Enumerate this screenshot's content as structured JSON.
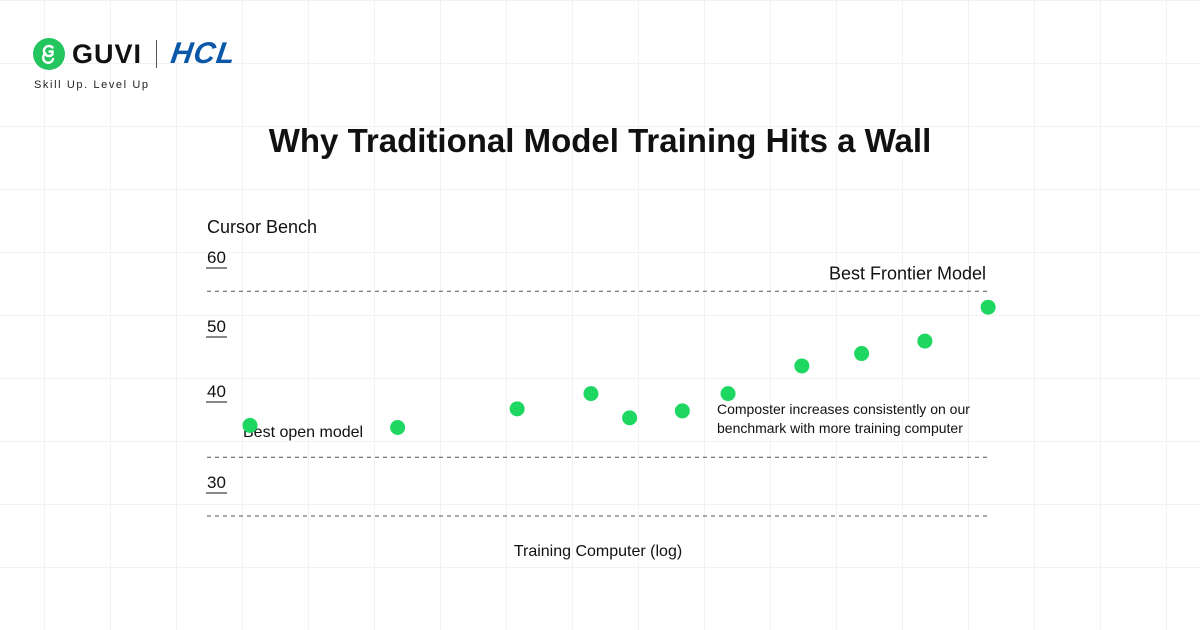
{
  "brand": {
    "guvi_name": "GUVI",
    "hcl_name": "HCL",
    "tagline": "Skill Up. Level Up",
    "guvi_color": "#22c55e",
    "hcl_color": "#0b57a8",
    "guvi_icon": "guvi-g-icon"
  },
  "chart_data": {
    "type": "scatter",
    "title": "Why Traditional Model Training Hits a Wall",
    "ylabel": "Cursor Bench",
    "xlabel": "Training Computer (log)",
    "yticks": [
      "60",
      "50",
      "40",
      "30"
    ],
    "ylim": [
      25,
      60
    ],
    "xlim": [
      0,
      14
    ],
    "grid": true,
    "point_color": "#1ed760",
    "reference_lines": [
      {
        "value": 57.5,
        "label": "Best Frontier Model"
      },
      {
        "value": 33.5,
        "label": ""
      },
      {
        "value": 25,
        "label": ""
      }
    ],
    "annotations": [
      {
        "text": "Best open model"
      },
      {
        "text": "Composter increases consistently on our"
      },
      {
        "text": "benchmark with more training computer"
      }
    ],
    "series": [
      {
        "x": [
          0.5,
          2.6,
          4.3,
          5.35,
          5.9,
          6.65,
          7.3,
          8.35,
          9.2,
          10.1,
          11.0
        ],
        "y": [
          38.1,
          37.8,
          40.5,
          42.7,
          39.2,
          40.2,
          42.7,
          46.7,
          48.5,
          50.3,
          55.2
        ]
      }
    ]
  }
}
